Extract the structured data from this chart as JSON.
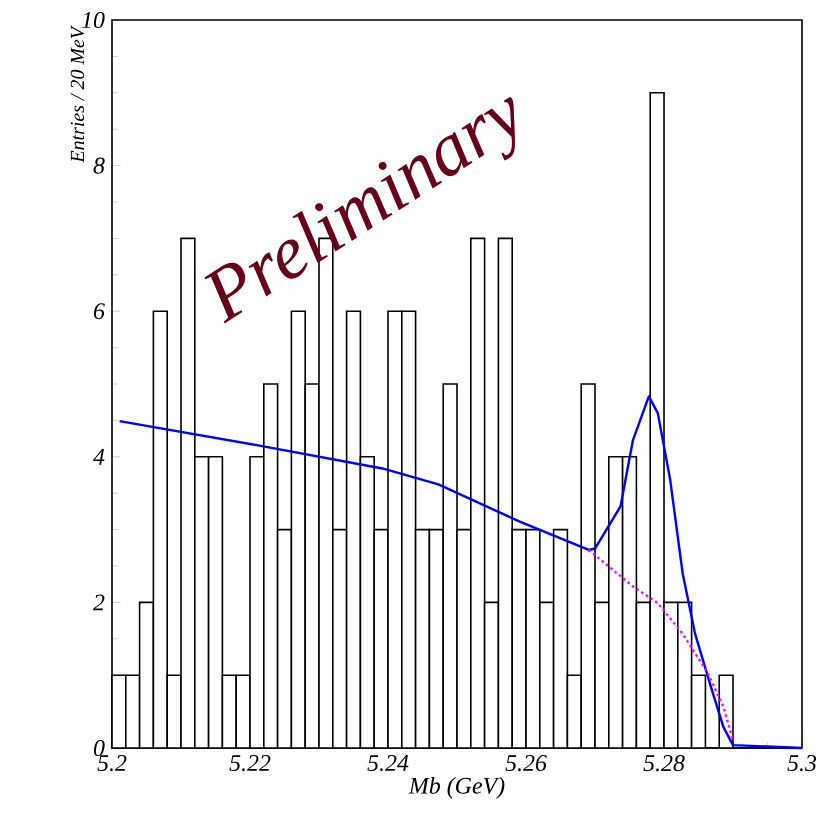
{
  "chart_data": {
    "type": "histogram",
    "xlabel": "Mb (GeV)",
    "ylabel": "Entries / 20 MeV",
    "annotations": [
      "Preliminary"
    ],
    "bins": [
      5.2,
      5.202,
      5.204,
      5.206,
      5.208,
      5.21,
      5.212,
      5.214,
      5.216,
      5.218,
      5.22,
      5.222,
      5.224,
      5.226,
      5.228,
      5.23,
      5.232,
      5.234,
      5.236,
      5.238,
      5.24,
      5.242,
      5.244,
      5.246,
      5.248,
      5.25,
      5.252,
      5.254,
      5.256,
      5.258,
      5.26,
      5.262,
      5.264,
      5.266,
      5.268,
      5.27,
      5.272,
      5.274,
      5.276,
      5.278,
      5.28,
      5.282,
      5.284,
      5.286,
      5.288,
      5.29,
      5.292,
      5.294,
      5.296,
      5.298,
      5.3
    ],
    "values": [
      1,
      1,
      2,
      6,
      1,
      7,
      4,
      4,
      1,
      1,
      4,
      5,
      3,
      6,
      5,
      7,
      3,
      6,
      4,
      3,
      6,
      6,
      3,
      3,
      5,
      3,
      7,
      2,
      7,
      3,
      3,
      2,
      3,
      1,
      5,
      2,
      4,
      4,
      2,
      9,
      2,
      2,
      1,
      0,
      1,
      0,
      0,
      0,
      0,
      0
    ],
    "color": "#000000",
    "series": [
      {
        "type": "line",
        "color": "#0000ff",
        "line_style": "solid",
        "x": [
          5.2011,
          5.221,
          5.2392,
          5.2473,
          5.2591,
          5.2691,
          5.27,
          5.2737,
          5.2755,
          5.2778,
          5.2791,
          5.2809,
          5.2827,
          5.2845,
          5.2868,
          5.2886,
          5.29,
          5.3
        ],
        "values": [
          4.49,
          4.16,
          3.84,
          3.62,
          3.11,
          2.72,
          2.74,
          3.32,
          4.23,
          4.83,
          4.6,
          3.68,
          2.4,
          1.57,
          0.84,
          0.29,
          0.04,
          0
        ]
      },
      {
        "type": "line",
        "color": "#ff00ff",
        "line_style": "dotted",
        "x": [
          5.2691,
          5.2755,
          5.2791,
          5.2827,
          5.2864,
          5.2886,
          5.29
        ],
        "values": [
          2.72,
          2.22,
          1.99,
          1.57,
          1.02,
          0.57,
          0.1
        ]
      }
    ],
    "xlim": [
      5.2,
      5.3
    ],
    "xticks": [
      5.2,
      5.22,
      5.24,
      5.26,
      5.28,
      5.3
    ],
    "ylim": [
      0,
      10
    ],
    "yticks": [
      0,
      2,
      4,
      6,
      8,
      10
    ]
  }
}
